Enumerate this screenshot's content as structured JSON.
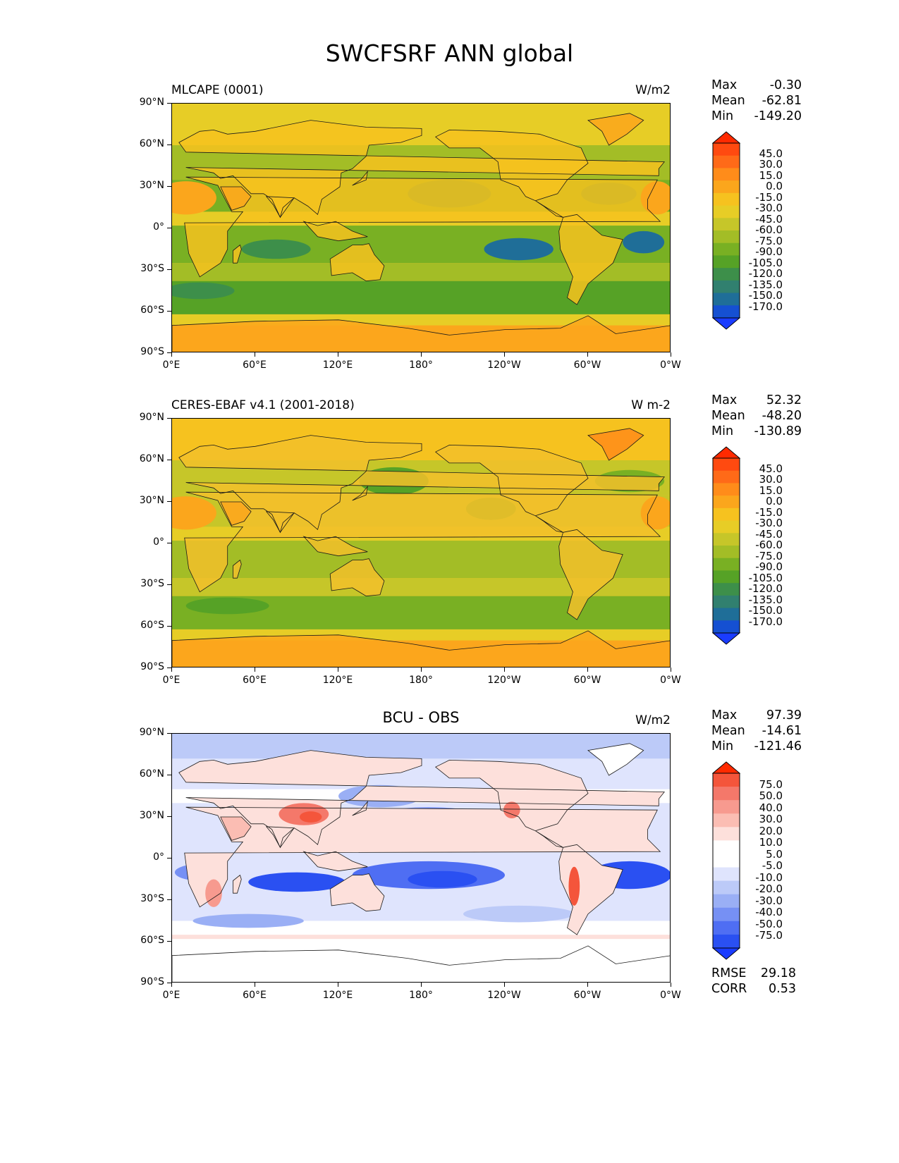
{
  "title": "SWCFSRF ANN global",
  "lat_labels": [
    "90°N",
    "60°N",
    "30°N",
    "0°",
    "30°S",
    "60°S",
    "90°S"
  ],
  "lon_labels": [
    "0°E",
    "60°E",
    "120°E",
    "180°",
    "120°W",
    "60°W",
    "0°W"
  ],
  "panels": [
    {
      "title": "MLCAPE (0001)",
      "units": "W/m2",
      "stats": {
        "max_label": "Max",
        "max": "-0.30",
        "mean_label": "Mean",
        "mean": "-62.81",
        "min_label": "Min",
        "min": "-149.20"
      },
      "colorbar": {
        "labels": [
          "45.0",
          "30.0",
          "15.0",
          "0.0",
          "-15.0",
          "-30.0",
          "-45.0",
          "-60.0",
          "-75.0",
          "-90.0",
          "-105.0",
          "-120.0",
          "-135.0",
          "-150.0",
          "-170.0"
        ],
        "colors": [
          "#ff2a00",
          "#ff4a10",
          "#ff6a18",
          "#ff8c1a",
          "#fba61c",
          "#f6c21f",
          "#e7cd26",
          "#c6c629",
          "#a3bd26",
          "#79b023",
          "#56a226",
          "#3d8f4a",
          "#31806f",
          "#1f6e98",
          "#1550d2",
          "#1a3cff"
        ]
      }
    },
    {
      "title": "CERES-EBAF v4.1 (2001-2018)",
      "units": "W m-2",
      "stats": {
        "max_label": "Max",
        "max": "52.32",
        "mean_label": "Mean",
        "mean": "-48.20",
        "min_label": "Min",
        "min": "-130.89"
      },
      "colorbar": {
        "labels": [
          "45.0",
          "30.0",
          "15.0",
          "0.0",
          "-15.0",
          "-30.0",
          "-45.0",
          "-60.0",
          "-75.0",
          "-90.0",
          "-105.0",
          "-120.0",
          "-135.0",
          "-150.0",
          "-170.0"
        ],
        "colors": [
          "#ff2a00",
          "#ff4a10",
          "#ff6a18",
          "#ff8c1a",
          "#fba61c",
          "#f6c21f",
          "#e7cd26",
          "#c6c629",
          "#a3bd26",
          "#79b023",
          "#56a226",
          "#3d8f4a",
          "#31806f",
          "#1f6e98",
          "#1550d2",
          "#1a3cff"
        ]
      }
    },
    {
      "title": "BCU - OBS",
      "units": "W/m2",
      "stats": {
        "max_label": "Max",
        "max": "97.39",
        "mean_label": "Mean",
        "mean": "-14.61",
        "min_label": "Min",
        "min": "-121.46"
      },
      "metrics": {
        "rmse_label": "RMSE",
        "rmse": "29.18",
        "corr_label": "CORR",
        "corr": "0.53"
      },
      "colorbar": {
        "labels": [
          "75.0",
          "50.0",
          "40.0",
          "30.0",
          "20.0",
          "10.0",
          "5.0",
          "-5.0",
          "-10.0",
          "-20.0",
          "-30.0",
          "-40.0",
          "-50.0",
          "-75.0"
        ],
        "colors": [
          "#ff2a00",
          "#f4553b",
          "#f4786a",
          "#f79a8f",
          "#fbbdb3",
          "#fde0db",
          "#ffffff",
          "#ffffff",
          "#dfe4fd",
          "#bccaf8",
          "#9aaff5",
          "#7690f4",
          "#4f6ef3",
          "#2a50f2",
          "#1a3cff"
        ]
      }
    }
  ]
}
